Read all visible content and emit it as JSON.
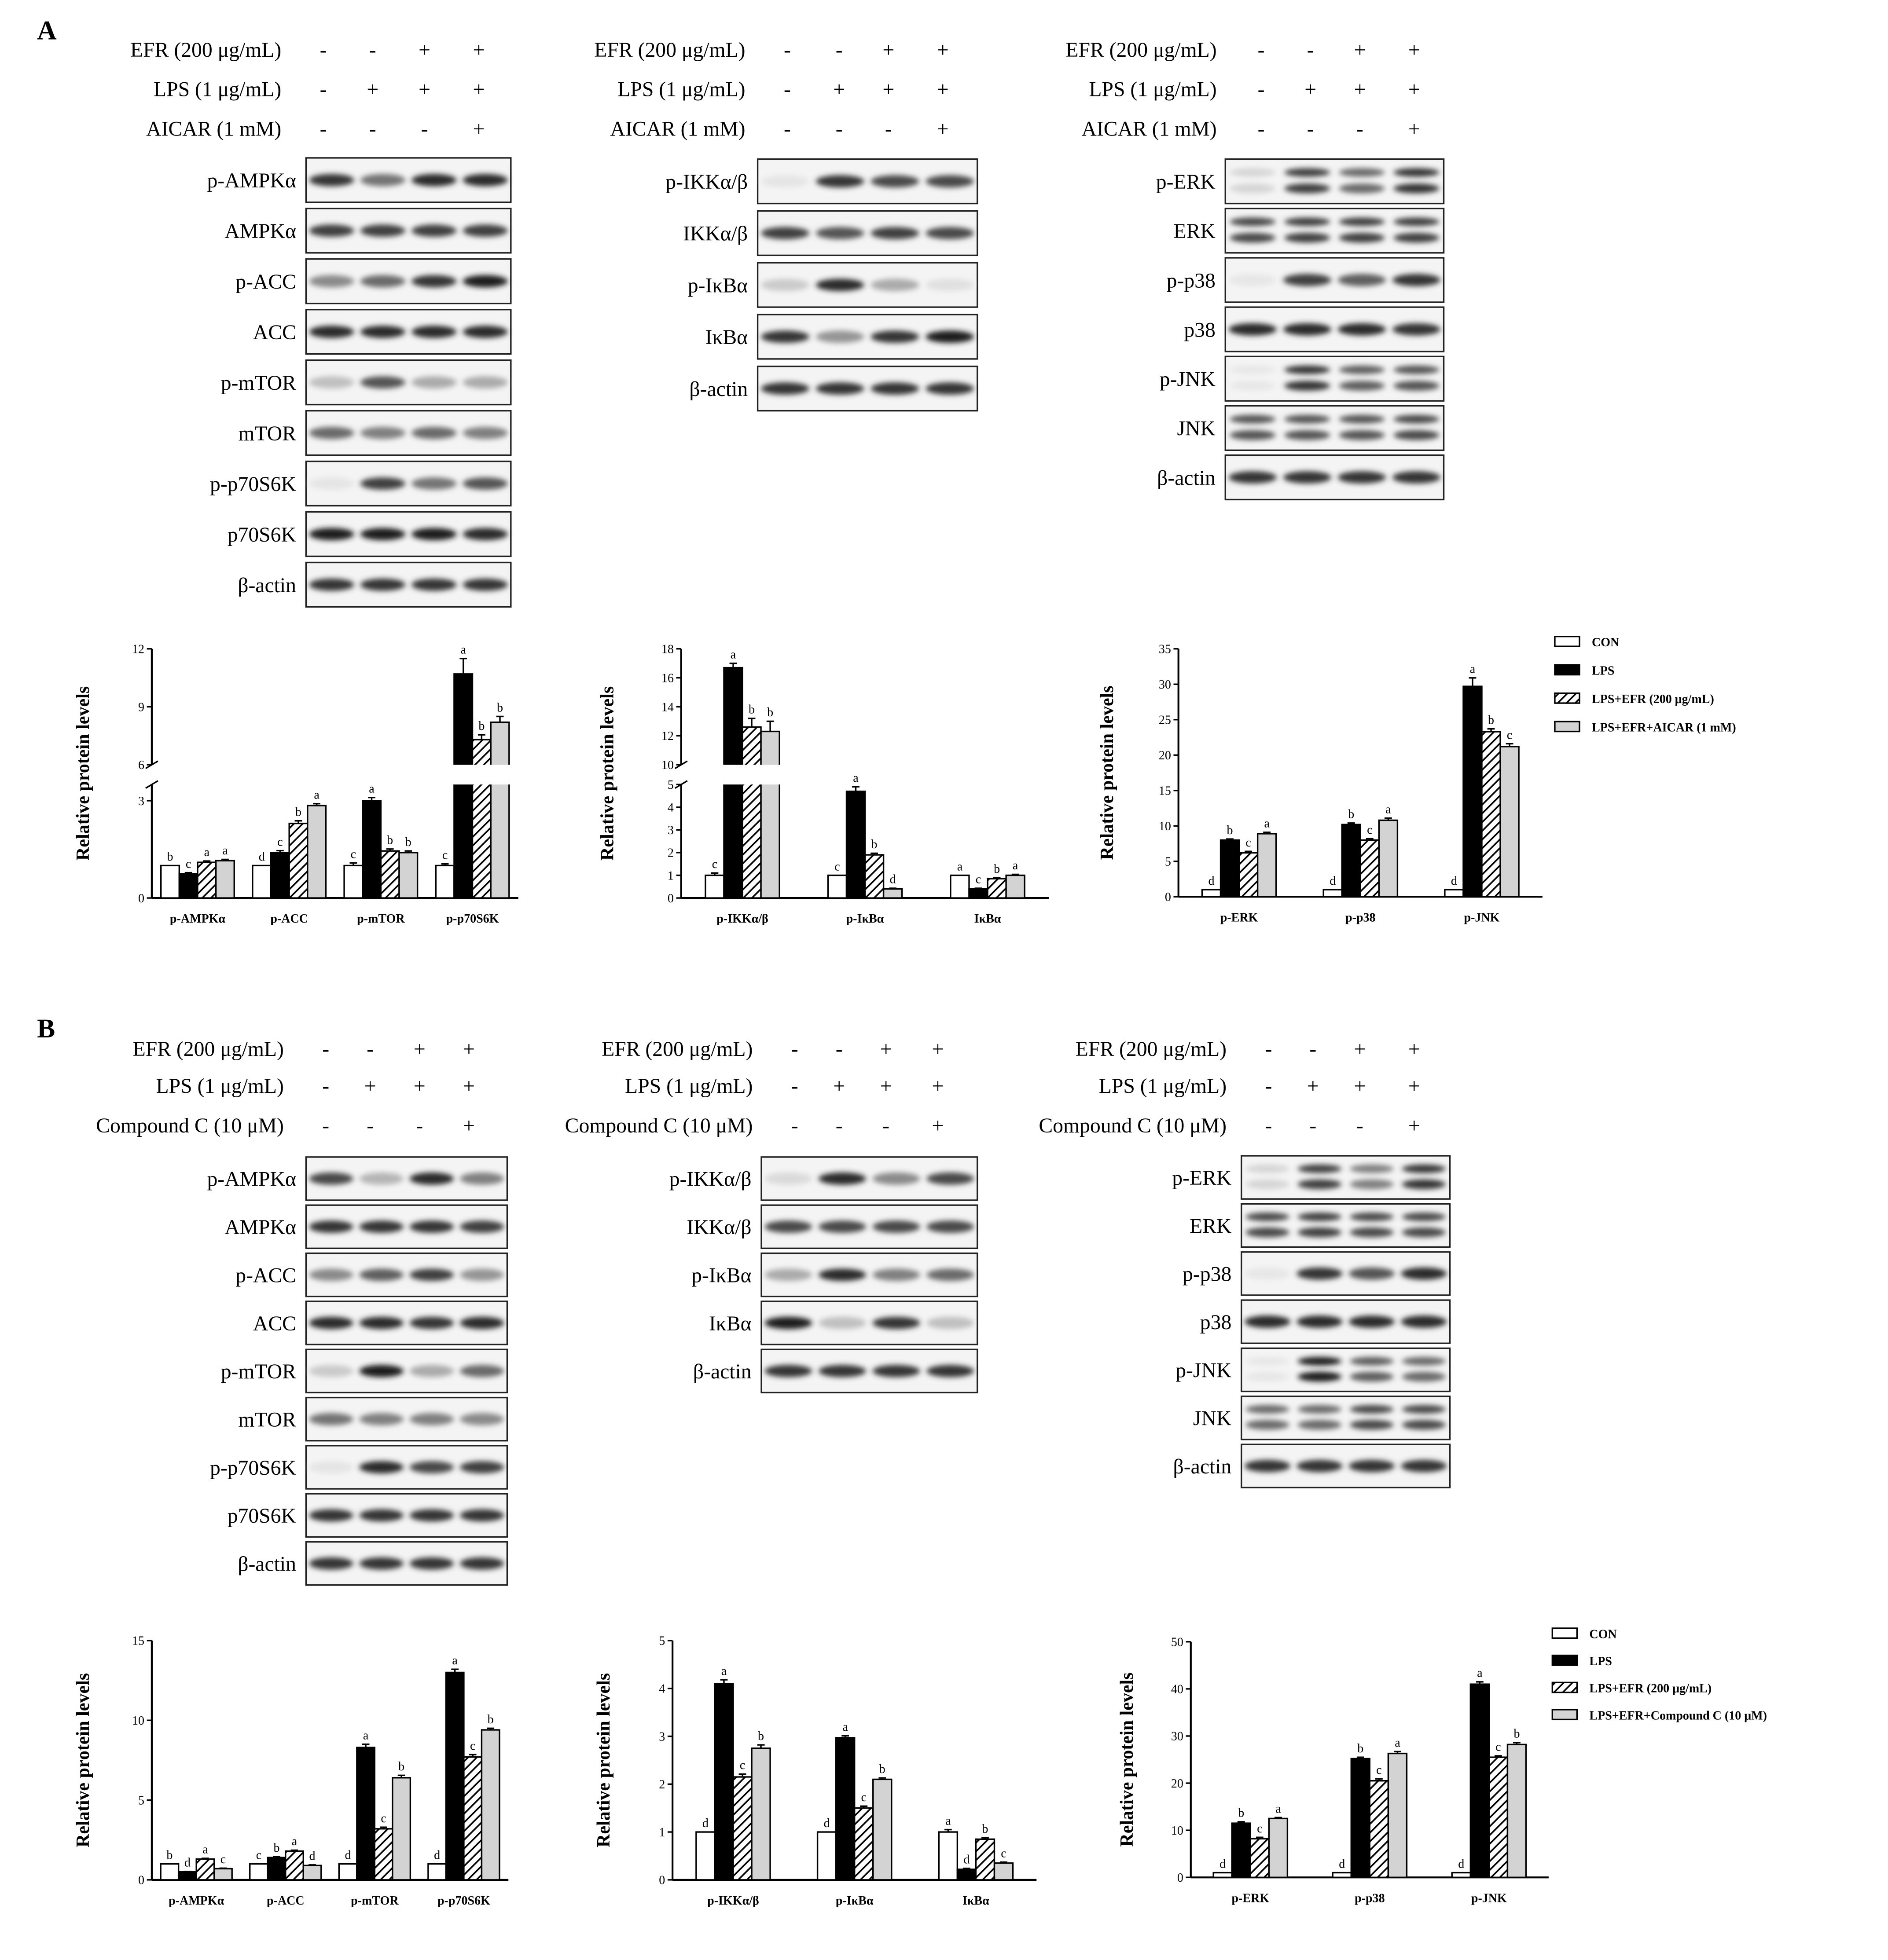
{
  "panels": [
    {
      "letter": "A",
      "treatment_groups": [
        {
          "rows": [
            {
              "label": "EFR (200 μg/mL)",
              "marks": [
                "-",
                "-",
                "+",
                "+"
              ]
            },
            {
              "label": "LPS (1 μg/mL)",
              "marks": [
                "-",
                "+",
                "+",
                "+"
              ]
            },
            {
              "label": "AICAR (1 mM)",
              "marks": [
                "-",
                "-",
                "-",
                "+"
              ]
            }
          ],
          "blots": [
            "p-AMPKα",
            "AMPKα",
            "p-ACC",
            "ACC",
            "p-mTOR",
            "mTOR",
            "p-p70S6K",
            "p70S6K",
            "β-actin"
          ]
        },
        {
          "rows": [
            {
              "label": "EFR (200 μg/mL)",
              "marks": [
                "-",
                "-",
                "+",
                "+"
              ]
            },
            {
              "label": "LPS (1 μg/mL)",
              "marks": [
                "-",
                "+",
                "+",
                "+"
              ]
            },
            {
              "label": "AICAR (1 mM)",
              "marks": [
                "-",
                "-",
                "-",
                "+"
              ]
            }
          ],
          "blots": [
            "p-IKKα/β",
            "IKKα/β",
            "p-IκBα",
            "IκBα",
            "β-actin"
          ]
        },
        {
          "rows": [
            {
              "label": "EFR (200 μg/mL)",
              "marks": [
                "-",
                "-",
                "+",
                "+"
              ]
            },
            {
              "label": "LPS (1 μg/mL)",
              "marks": [
                "-",
                "+",
                "+",
                "+"
              ]
            },
            {
              "label": "AICAR (1 mM)",
              "marks": [
                "-",
                "-",
                "-",
                "+"
              ]
            }
          ],
          "blots": [
            "p-ERK",
            "ERK",
            "p-p38",
            "p38",
            "p-JNK",
            "JNK",
            "β-actin"
          ]
        }
      ],
      "legend": [
        "CON",
        "LPS",
        "LPS+EFR (200 μg/mL)",
        "LPS+EFR+AICAR (1 mM)"
      ]
    },
    {
      "letter": "B",
      "treatment_groups": [
        {
          "rows": [
            {
              "label": "EFR (200 μg/mL)",
              "marks": [
                "-",
                "-",
                "+",
                "+"
              ]
            },
            {
              "label": "LPS (1 μg/mL)",
              "marks": [
                "-",
                "+",
                "+",
                "+"
              ]
            },
            {
              "label": "Compound C (10 μM)",
              "marks": [
                "-",
                "-",
                "-",
                "+"
              ]
            }
          ],
          "blots": [
            "p-AMPKα",
            "AMPKα",
            "p-ACC",
            "ACC",
            "p-mTOR",
            "mTOR",
            "p-p70S6K",
            "p70S6K",
            "β-actin"
          ]
        },
        {
          "rows": [
            {
              "label": "EFR (200 μg/mL)",
              "marks": [
                "-",
                "-",
                "+",
                "+"
              ]
            },
            {
              "label": "LPS (1 μg/mL)",
              "marks": [
                "-",
                "+",
                "+",
                "+"
              ]
            },
            {
              "label": "Compound C (10 μM)",
              "marks": [
                "-",
                "-",
                "-",
                "+"
              ]
            }
          ],
          "blots": [
            "p-IKKα/β",
            "IKKα/β",
            "p-IκBα",
            "IκBα",
            "β-actin"
          ]
        },
        {
          "rows": [
            {
              "label": "EFR (200 μg/mL)",
              "marks": [
                "-",
                "-",
                "+",
                "+"
              ]
            },
            {
              "label": "LPS (1 μg/mL)",
              "marks": [
                "-",
                "+",
                "+",
                "+"
              ]
            },
            {
              "label": "Compound C (10 μM)",
              "marks": [
                "-",
                "-",
                "-",
                "+"
              ]
            }
          ],
          "blots": [
            "p-ERK",
            "ERK",
            "p-p38",
            "p38",
            "p-JNK",
            "JNK",
            "β-actin"
          ]
        }
      ],
      "legend": [
        "CON",
        "LPS",
        "LPS+EFR (200 μg/mL)",
        "LPS+EFR+Compound C (10 μM)"
      ]
    }
  ],
  "chart_data": [
    {
      "type": "bar",
      "panel": "A",
      "ylabel": "Relative protein levels",
      "categories": [
        "p-AMPKα",
        "p-ACC",
        "p-mTOR",
        "p-p70S6K"
      ],
      "axis": "broken",
      "ylim_lower": [
        0,
        3.5
      ],
      "ylim_upper": [
        6,
        12
      ],
      "yticks_lower": [
        0,
        3
      ],
      "yticks_upper": [
        6,
        9,
        12
      ],
      "series": [
        {
          "name": "CON",
          "values": [
            1.0,
            1.0,
            1.0,
            1.0
          ],
          "errors": [
            0,
            0,
            0.08,
            0.05
          ],
          "letters": [
            "b",
            "d",
            "c",
            "c"
          ]
        },
        {
          "name": "LPS",
          "values": [
            0.75,
            1.4,
            3.0,
            10.7
          ],
          "errors": [
            0.03,
            0.06,
            0.1,
            0.8
          ],
          "letters": [
            "c",
            "c",
            "a",
            "a"
          ]
        },
        {
          "name": "LPS+EFR (200 μg/mL)",
          "values": [
            1.1,
            2.3,
            1.45,
            7.3
          ],
          "errors": [
            0.04,
            0.08,
            0.06,
            0.25
          ],
          "letters": [
            "a",
            "b",
            "b",
            "b"
          ]
        },
        {
          "name": "LPS+EFR+AICAR (1 mM)",
          "values": [
            1.15,
            2.85,
            1.4,
            8.2
          ],
          "errors": [
            0.04,
            0.06,
            0.05,
            0.3
          ],
          "letters": [
            "a",
            "a",
            "b",
            "b"
          ]
        }
      ]
    },
    {
      "type": "bar",
      "panel": "A",
      "ylabel": "Relative protein levels",
      "categories": [
        "p-IKKα/β",
        "p-IκBα",
        "IκBα"
      ],
      "axis": "broken",
      "ylim_lower": [
        0,
        5
      ],
      "ylim_upper": [
        10,
        18
      ],
      "yticks_lower": [
        0,
        1,
        2,
        3,
        4,
        5
      ],
      "yticks_upper": [
        10,
        12,
        14,
        16,
        18
      ],
      "series": [
        {
          "name": "CON",
          "values": [
            1.0,
            1.0,
            1.0
          ],
          "errors": [
            0.1,
            0,
            0
          ],
          "letters": [
            "c",
            "c",
            "a"
          ]
        },
        {
          "name": "LPS",
          "values": [
            16.7,
            4.7,
            0.4
          ],
          "errors": [
            0.3,
            0.2,
            0.03
          ],
          "letters": [
            "a",
            "a",
            "c"
          ]
        },
        {
          "name": "LPS+EFR (200 μg/mL)",
          "values": [
            12.6,
            1.9,
            0.85
          ],
          "errors": [
            0.6,
            0.07,
            0.04
          ],
          "letters": [
            "b",
            "b",
            "b"
          ]
        },
        {
          "name": "LPS+EFR+AICAR (1 mM)",
          "values": [
            12.3,
            0.4,
            1.0
          ],
          "errors": [
            0.7,
            0.03,
            0.04
          ],
          "letters": [
            "b",
            "d",
            "a"
          ]
        }
      ]
    },
    {
      "type": "bar",
      "panel": "A",
      "ylabel": "Relative protein levels",
      "categories": [
        "p-ERK",
        "p-p38",
        "p-JNK"
      ],
      "ylim": [
        0,
        35
      ],
      "yticks": [
        0,
        5,
        10,
        15,
        20,
        25,
        30,
        35
      ],
      "series": [
        {
          "name": "CON",
          "values": [
            1.0,
            1.0,
            1.0
          ],
          "errors": [
            0,
            0,
            0
          ],
          "letters": [
            "d",
            "d",
            "d"
          ]
        },
        {
          "name": "LPS",
          "values": [
            8.0,
            10.2,
            29.7
          ],
          "errors": [
            0.15,
            0.2,
            1.2
          ],
          "letters": [
            "b",
            "b",
            "a"
          ]
        },
        {
          "name": "LPS+EFR (200 μg/mL)",
          "values": [
            6.2,
            8.0,
            23.3
          ],
          "errors": [
            0.2,
            0.2,
            0.4
          ],
          "letters": [
            "c",
            "c",
            "b"
          ]
        },
        {
          "name": "LPS+EFR+AICAR (1 mM)",
          "values": [
            8.9,
            10.8,
            21.2
          ],
          "errors": [
            0.2,
            0.3,
            0.4
          ],
          "letters": [
            "a",
            "a",
            "c"
          ]
        }
      ]
    },
    {
      "type": "bar",
      "panel": "B",
      "ylabel": "Relative protein levels",
      "categories": [
        "p-AMPKα",
        "p-ACC",
        "p-mTOR",
        "p-p70S6K"
      ],
      "ylim": [
        0,
        15
      ],
      "yticks": [
        0,
        5,
        10,
        15
      ],
      "series": [
        {
          "name": "CON",
          "values": [
            1.0,
            1.0,
            1.0,
            1.0
          ],
          "errors": [
            0,
            0,
            0,
            0
          ],
          "letters": [
            "b",
            "c",
            "d",
            "d"
          ]
        },
        {
          "name": "LPS",
          "values": [
            0.5,
            1.4,
            8.3,
            13.0
          ],
          "errors": [
            0.03,
            0.05,
            0.2,
            0.2
          ],
          "letters": [
            "d",
            "b",
            "a",
            "a"
          ]
        },
        {
          "name": "LPS+EFR (200 μg/mL)",
          "values": [
            1.3,
            1.8,
            3.2,
            7.7
          ],
          "errors": [
            0.05,
            0.06,
            0.1,
            0.15
          ],
          "letters": [
            "a",
            "a",
            "c",
            "c"
          ]
        },
        {
          "name": "LPS+EFR+Compound C (10 μM)",
          "values": [
            0.7,
            0.9,
            6.4,
            9.4
          ],
          "errors": [
            0.03,
            0.04,
            0.15,
            0.1
          ],
          "letters": [
            "c",
            "d",
            "b",
            "b"
          ]
        }
      ]
    },
    {
      "type": "bar",
      "panel": "B",
      "ylabel": "Relative protein levels",
      "categories": [
        "p-IKKα/β",
        "p-IκBα",
        "IκBα"
      ],
      "ylim": [
        0,
        5
      ],
      "yticks": [
        0,
        1,
        2,
        3,
        4,
        5
      ],
      "series": [
        {
          "name": "CON",
          "values": [
            1.0,
            1.0,
            1.0
          ],
          "errors": [
            0,
            0,
            0.05
          ],
          "letters": [
            "d",
            "d",
            "a"
          ]
        },
        {
          "name": "LPS",
          "values": [
            4.1,
            2.97,
            0.22
          ],
          "errors": [
            0.08,
            0.04,
            0.02
          ],
          "letters": [
            "a",
            "a",
            "d"
          ]
        },
        {
          "name": "LPS+EFR (200 μg/mL)",
          "values": [
            2.15,
            1.5,
            0.85
          ],
          "errors": [
            0.06,
            0.04,
            0.03
          ],
          "letters": [
            "c",
            "c",
            "b"
          ]
        },
        {
          "name": "LPS+EFR+Compound C (10 μM)",
          "values": [
            2.75,
            2.1,
            0.35
          ],
          "errors": [
            0.07,
            0.03,
            0.02
          ],
          "letters": [
            "b",
            "b",
            "c"
          ]
        }
      ]
    },
    {
      "type": "bar",
      "panel": "B",
      "ylabel": "Relative protein levels",
      "categories": [
        "p-ERK",
        "p-p38",
        "p-JNK"
      ],
      "ylim": [
        0,
        50
      ],
      "yticks": [
        0,
        10,
        20,
        30,
        40,
        50
      ],
      "series": [
        {
          "name": "CON",
          "values": [
            1.0,
            1.0,
            1.0
          ],
          "errors": [
            0,
            0,
            0
          ],
          "letters": [
            "d",
            "d",
            "d"
          ]
        },
        {
          "name": "LPS",
          "values": [
            11.5,
            25.2,
            41.0
          ],
          "errors": [
            0.3,
            0.3,
            0.5
          ],
          "letters": [
            "b",
            "b",
            "a"
          ]
        },
        {
          "name": "LPS+EFR (200 μg/mL)",
          "values": [
            8.2,
            20.5,
            25.5
          ],
          "errors": [
            0.3,
            0.4,
            0.3
          ],
          "letters": [
            "c",
            "c",
            "c"
          ]
        },
        {
          "name": "LPS+EFR+Compound C (10 μM)",
          "values": [
            12.5,
            26.3,
            28.2
          ],
          "errors": [
            0.2,
            0.4,
            0.4
          ],
          "letters": [
            "a",
            "a",
            "b"
          ]
        }
      ]
    }
  ],
  "colors": {
    "con": "#ffffff",
    "lps": "#000000",
    "efr": "hatch",
    "third": "#d3d3d3",
    "axis": "#000000"
  }
}
